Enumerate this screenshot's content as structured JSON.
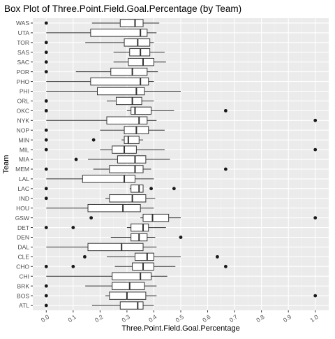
{
  "chart_data": {
    "type": "boxplot",
    "orientation": "horizontal",
    "title": "Box Plot of Three.Point.Field.Goal.Percentage (by Team)",
    "xlabel": "Three.Point.Field.Goal.Percentage",
    "ylabel": "Team",
    "xlim": [
      -0.05,
      1.05
    ],
    "xticks": [
      0.0,
      0.1,
      0.2,
      0.3,
      0.4,
      0.5,
      0.6,
      0.7,
      0.8,
      0.9,
      1.0
    ],
    "xtick_labels": [
      "0.0",
      "0.1",
      "0.2",
      "0.3",
      "0.4",
      "0.5",
      "0.6",
      "0.7",
      "0.8",
      "0.9",
      "1.0"
    ],
    "grid": true,
    "colors": {
      "panel_bg": "#ebebeb",
      "grid_major": "#ffffff",
      "box_fill": "#ffffff",
      "line": "#333333",
      "outlier": "#1a1a1a",
      "tick_text": "#4d4d4d",
      "title_text": "#000000"
    },
    "teams": [
      {
        "name": "WAS",
        "whisker_low": 0.17,
        "q1": 0.275,
        "median": 0.33,
        "q3": 0.36,
        "whisker_high": 0.42,
        "outliers": [
          0.0
        ]
      },
      {
        "name": "UTA",
        "whisker_low": 0.0,
        "q1": 0.165,
        "median": 0.35,
        "q3": 0.375,
        "whisker_high": 0.41,
        "outliers": []
      },
      {
        "name": "TOR",
        "whisker_low": 0.145,
        "q1": 0.29,
        "median": 0.34,
        "q3": 0.385,
        "whisker_high": 0.4,
        "outliers": [
          0.0
        ]
      },
      {
        "name": "SAS",
        "whisker_low": 0.25,
        "q1": 0.31,
        "median": 0.35,
        "q3": 0.385,
        "whisker_high": 0.44,
        "outliers": [
          0.0
        ]
      },
      {
        "name": "SAC",
        "whisker_low": 0.25,
        "q1": 0.305,
        "median": 0.36,
        "q3": 0.4,
        "whisker_high": 0.445,
        "outliers": [
          0.0
        ]
      },
      {
        "name": "POR",
        "whisker_low": 0.11,
        "q1": 0.24,
        "median": 0.32,
        "q3": 0.375,
        "whisker_high": 0.415,
        "outliers": [
          0.0
        ]
      },
      {
        "name": "PHO",
        "whisker_low": 0.0,
        "q1": 0.165,
        "median": 0.35,
        "q3": 0.38,
        "whisker_high": 0.4,
        "outliers": []
      },
      {
        "name": "PHI",
        "whisker_low": 0.0,
        "q1": 0.19,
        "median": 0.335,
        "q3": 0.365,
        "whisker_high": 0.5,
        "outliers": []
      },
      {
        "name": "ORL",
        "whisker_low": 0.225,
        "q1": 0.26,
        "median": 0.32,
        "q3": 0.355,
        "whisker_high": 0.4,
        "outliers": [
          0.0
        ]
      },
      {
        "name": "OKC",
        "whisker_low": 0.3,
        "q1": 0.315,
        "median": 0.33,
        "q3": 0.39,
        "whisker_high": 0.475,
        "outliers": [
          0.0,
          0.667
        ]
      },
      {
        "name": "NYK",
        "whisker_low": 0.0,
        "q1": 0.225,
        "median": 0.345,
        "q3": 0.375,
        "whisker_high": 0.41,
        "outliers": [
          1.0
        ]
      },
      {
        "name": "NOP",
        "whisker_low": 0.2,
        "q1": 0.29,
        "median": 0.335,
        "q3": 0.38,
        "whisker_high": 0.44,
        "outliers": [
          0.0
        ]
      },
      {
        "name": "MIN",
        "whisker_low": 0.28,
        "q1": 0.29,
        "median": 0.305,
        "q3": 0.345,
        "whisker_high": 0.36,
        "outliers": [
          0.0,
          0.176
        ]
      },
      {
        "name": "MIL",
        "whisker_low": 0.2,
        "q1": 0.245,
        "median": 0.29,
        "q3": 0.335,
        "whisker_high": 0.44,
        "outliers": [
          0.0,
          1.0
        ]
      },
      {
        "name": "MIA",
        "whisker_low": 0.155,
        "q1": 0.265,
        "median": 0.33,
        "q3": 0.37,
        "whisker_high": 0.46,
        "outliers": [
          0.111
        ]
      },
      {
        "name": "MEM",
        "whisker_low": 0.175,
        "q1": 0.235,
        "median": 0.33,
        "q3": 0.36,
        "whisker_high": 0.39,
        "outliers": [
          0.0,
          0.667
        ]
      },
      {
        "name": "LAL",
        "whisker_low": 0.0,
        "q1": 0.135,
        "median": 0.29,
        "q3": 0.33,
        "whisker_high": 0.4,
        "outliers": []
      },
      {
        "name": "LAC",
        "whisker_low": 0.31,
        "q1": 0.315,
        "median": 0.345,
        "q3": 0.36,
        "whisker_high": 0.36,
        "outliers": [
          0.0,
          0.39,
          0.475
        ]
      },
      {
        "name": "IND",
        "whisker_low": 0.22,
        "q1": 0.235,
        "median": 0.32,
        "q3": 0.37,
        "whisker_high": 0.405,
        "outliers": [
          0.0
        ]
      },
      {
        "name": "HOU",
        "whisker_low": 0.0,
        "q1": 0.155,
        "median": 0.285,
        "q3": 0.35,
        "whisker_high": 0.4,
        "outliers": []
      },
      {
        "name": "GSW",
        "whisker_low": 0.35,
        "q1": 0.36,
        "median": 0.395,
        "q3": 0.455,
        "whisker_high": 0.5,
        "outliers": [
          0.167,
          1.0
        ]
      },
      {
        "name": "DET",
        "whisker_low": 0.3,
        "q1": 0.315,
        "median": 0.36,
        "q3": 0.38,
        "whisker_high": 0.445,
        "outliers": [
          0.0,
          0.1
        ]
      },
      {
        "name": "DEN",
        "whisker_low": 0.24,
        "q1": 0.315,
        "median": 0.345,
        "q3": 0.375,
        "whisker_high": 0.405,
        "outliers": [
          0.5
        ]
      },
      {
        "name": "DAL",
        "whisker_low": 0.0,
        "q1": 0.155,
        "median": 0.28,
        "q3": 0.36,
        "whisker_high": 0.41,
        "outliers": []
      },
      {
        "name": "CLE",
        "whisker_low": 0.225,
        "q1": 0.33,
        "median": 0.375,
        "q3": 0.4,
        "whisker_high": 0.5,
        "outliers": [
          0.143,
          0.636
        ]
      },
      {
        "name": "CHO",
        "whisker_low": 0.255,
        "q1": 0.32,
        "median": 0.36,
        "q3": 0.4,
        "whisker_high": 0.48,
        "outliers": [
          0.0,
          0.1,
          0.667
        ]
      },
      {
        "name": "CHI",
        "whisker_low": 0.0,
        "q1": 0.245,
        "median": 0.35,
        "q3": 0.39,
        "whisker_high": 0.45,
        "outliers": []
      },
      {
        "name": "BRK",
        "whisker_low": 0.145,
        "q1": 0.245,
        "median": 0.31,
        "q3": 0.365,
        "whisker_high": 0.41,
        "outliers": [
          0.0
        ]
      },
      {
        "name": "BOS",
        "whisker_low": 0.22,
        "q1": 0.235,
        "median": 0.3,
        "q3": 0.37,
        "whisker_high": 0.41,
        "outliers": [
          0.0,
          1.0
        ]
      },
      {
        "name": "ATL",
        "whisker_low": 0.17,
        "q1": 0.275,
        "median": 0.34,
        "q3": 0.36,
        "whisker_high": 0.4,
        "outliers": [
          0.0
        ]
      }
    ]
  }
}
